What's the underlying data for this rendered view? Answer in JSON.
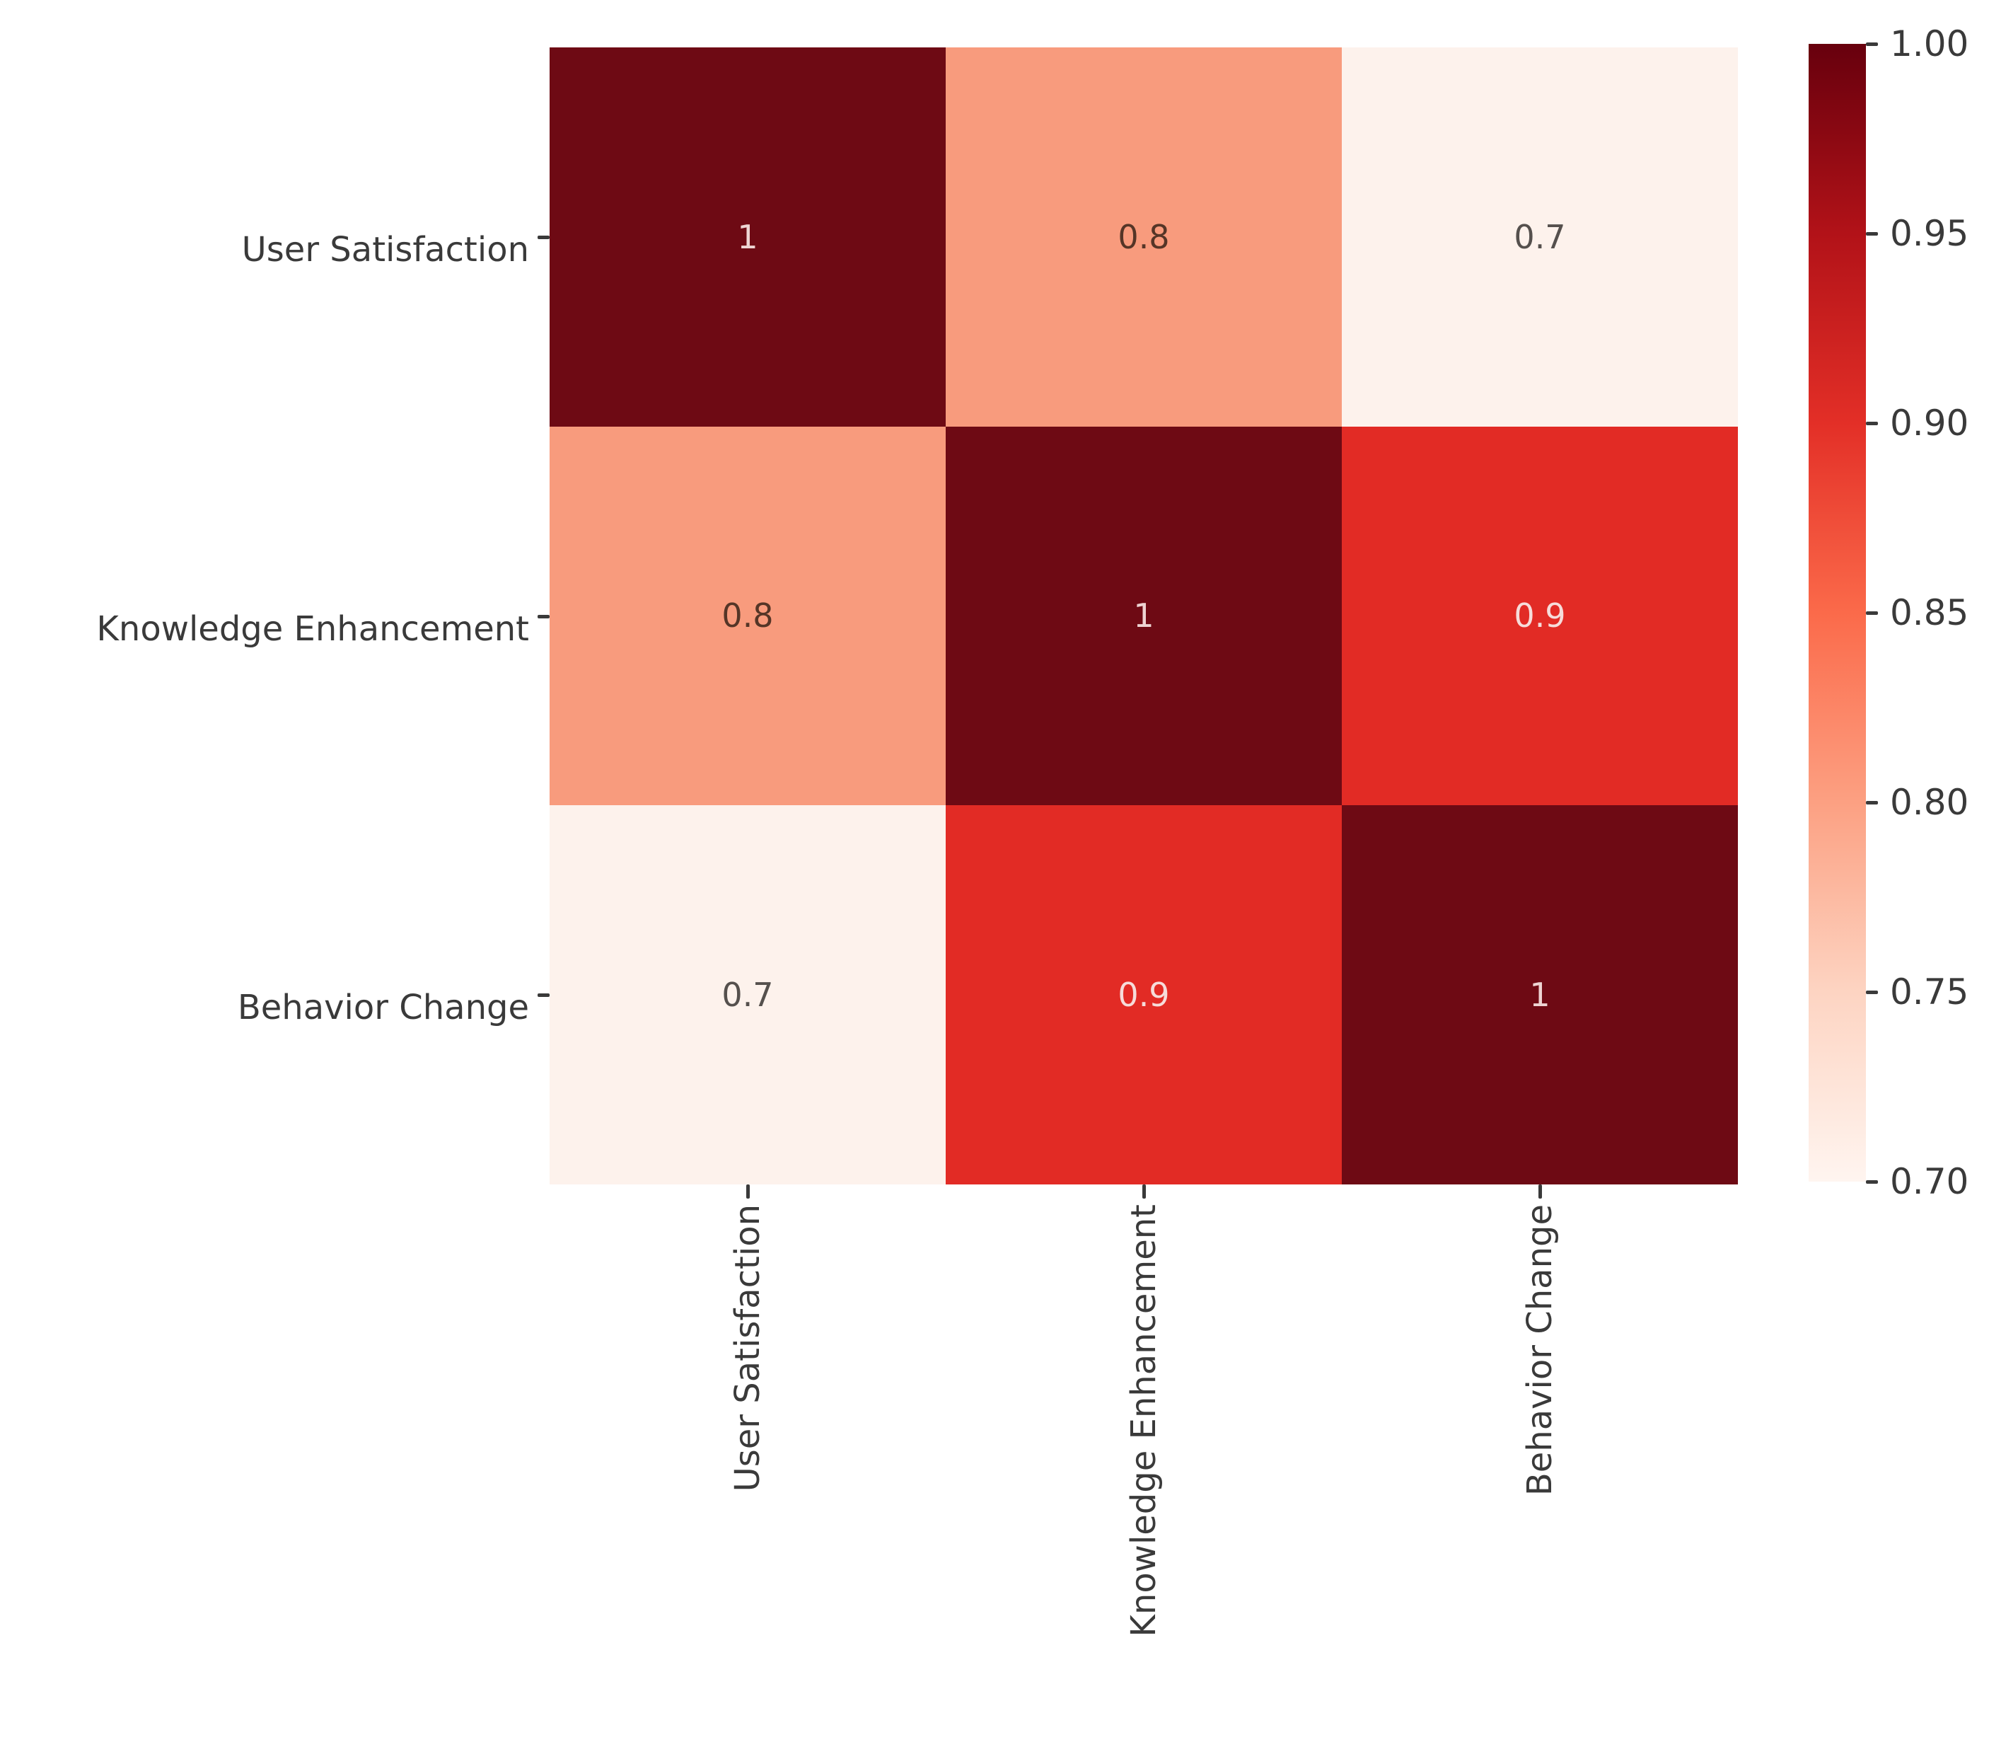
{
  "chart_data": {
    "type": "heatmap",
    "title": "",
    "x_categories": [
      "User Satisfaction",
      "Knowledge Enhancement",
      "Behavior Change"
    ],
    "y_categories": [
      "User Satisfaction",
      "Knowledge Enhancement",
      "Behavior Change"
    ],
    "matrix": [
      [
        1,
        0.8,
        0.7
      ],
      [
        0.8,
        1,
        0.9
      ],
      [
        0.7,
        0.9,
        1
      ]
    ],
    "annotations": [
      [
        "1",
        "0.8",
        "0.7"
      ],
      [
        "0.8",
        "1",
        "0.9"
      ],
      [
        "0.7",
        "0.9",
        "1"
      ]
    ],
    "colormap": "Reds",
    "vmin": 0.7,
    "vmax": 1.0,
    "colorbar_ticks": [
      "1.00",
      "0.95",
      "0.90",
      "0.85",
      "0.80",
      "0.75",
      "0.70"
    ],
    "colorbar_position": "right",
    "grid": false,
    "xlabel": "",
    "ylabel": ""
  },
  "colors": {
    "background": "#ffffff",
    "axis_text": "#3a3a3a",
    "tick_mark": "#3a3a3a",
    "cell_fill_by_value": {
      "1": "#6e0a14",
      "0.9": "#e22b25",
      "0.8": "#f89b7d",
      "0.7": "#fdf2ec"
    },
    "cell_text_by_value": {
      "1": "#eed4d3",
      "0.9": "#f6dcda",
      "0.8": "#553527",
      "0.7": "#55504d"
    },
    "colorbar_gradient_top_to_bottom": [
      "#67000d",
      "#b21218",
      "#e32f27",
      "#fb6a4a",
      "#fca082",
      "#fdd4c2",
      "#fff5f0"
    ]
  }
}
